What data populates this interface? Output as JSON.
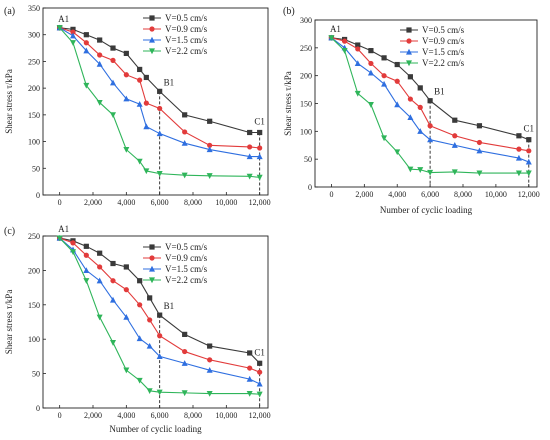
{
  "figure": {
    "colors": {
      "series": [
        "#3a3a3a",
        "#e23b3b",
        "#2f6fe0",
        "#2fb55a"
      ]
    },
    "markers": [
      "square",
      "circle",
      "triangle-up",
      "triangle-down"
    ]
  },
  "chart_data": [
    {
      "panel_label": "(a)",
      "type": "line",
      "xlabel": "",
      "ylabel": "Shear stress τ/kPa",
      "xlim": [
        -1000,
        12500
      ],
      "ylim": [
        0,
        350
      ],
      "xticks": [
        0,
        2000,
        4000,
        6000,
        8000,
        10000,
        12000
      ],
      "xtick_labels": [
        "0",
        "2,000",
        "4,000",
        "6,000",
        "8,000",
        "10,000",
        "12,000"
      ],
      "yticks": [
        0,
        50,
        100,
        150,
        200,
        250,
        300,
        350
      ],
      "ytick_labels": [
        "0",
        "50",
        "100",
        "150",
        "200",
        "250",
        "300",
        "350"
      ],
      "legend_position": "top-center",
      "vlines": [
        6000,
        12000
      ],
      "annotations": [
        {
          "text": "A1",
          "x": 0,
          "y": 313
        },
        {
          "text": "B1",
          "x": 6000,
          "y": 194
        },
        {
          "text": "C1",
          "x": 12000,
          "y": 117
        }
      ],
      "series": [
        {
          "name": "V=0.5 cm/s",
          "x": [
            0,
            800,
            1600,
            2400,
            3200,
            4000,
            4800,
            5200,
            6000,
            7500,
            9000,
            11400,
            12000
          ],
          "y": [
            313,
            310,
            300,
            290,
            275,
            265,
            235,
            220,
            194,
            150,
            138,
            117,
            117
          ]
        },
        {
          "name": "V=0.9 cm/s",
          "x": [
            0,
            800,
            1600,
            2400,
            3200,
            4000,
            4800,
            5200,
            6000,
            7500,
            9000,
            11400,
            12000
          ],
          "y": [
            313,
            305,
            285,
            262,
            252,
            225,
            215,
            172,
            162,
            118,
            93,
            90,
            88
          ]
        },
        {
          "name": "V=1.5 cm/s",
          "x": [
            0,
            800,
            1600,
            2400,
            3200,
            4000,
            4800,
            5200,
            6000,
            7500,
            9000,
            11400,
            12000
          ],
          "y": [
            313,
            298,
            270,
            245,
            210,
            180,
            170,
            128,
            115,
            97,
            85,
            72,
            72
          ]
        },
        {
          "name": "V=2.2 cm/s",
          "x": [
            0,
            800,
            1600,
            2400,
            3200,
            4000,
            4800,
            5200,
            6000,
            7500,
            9000,
            11400,
            12000
          ],
          "y": [
            313,
            285,
            205,
            173,
            150,
            85,
            63,
            45,
            40,
            37,
            36,
            35,
            33
          ]
        }
      ]
    },
    {
      "panel_label": "(b)",
      "type": "line",
      "xlabel": "Number of cyclic loading",
      "ylabel": "Shear stress τ/kPa",
      "xlim": [
        -1000,
        12500
      ],
      "ylim": [
        0,
        300
      ],
      "xticks": [
        0,
        2000,
        4000,
        6000,
        8000,
        10000,
        12000
      ],
      "xtick_labels": [
        "0",
        "2,000",
        "4,000",
        "6,000",
        "8,000",
        "10,000",
        "12,000"
      ],
      "yticks": [
        0,
        50,
        100,
        150,
        200,
        250,
        300
      ],
      "ytick_labels": [
        "0",
        "50",
        "100",
        "150",
        "200",
        "250",
        "300"
      ],
      "legend_position": "top-center",
      "vlines": [
        6000,
        12000
      ],
      "annotations": [
        {
          "text": "A1",
          "x": 0,
          "y": 268
        },
        {
          "text": "B1",
          "x": 6000,
          "y": 155
        },
        {
          "text": "C1",
          "x": 12000,
          "y": 85
        }
      ],
      "series": [
        {
          "name": "V=0.5 cm/s",
          "x": [
            0,
            800,
            1600,
            2400,
            3200,
            4000,
            4800,
            5400,
            6000,
            7500,
            9000,
            11400,
            12000
          ],
          "y": [
            268,
            265,
            255,
            245,
            232,
            220,
            198,
            178,
            155,
            120,
            110,
            92,
            85
          ]
        },
        {
          "name": "V=0.9 cm/s",
          "x": [
            0,
            800,
            1600,
            2400,
            3200,
            4000,
            4800,
            5400,
            6000,
            7500,
            9000,
            11400,
            12000
          ],
          "y": [
            268,
            262,
            248,
            222,
            200,
            190,
            158,
            143,
            110,
            92,
            80,
            68,
            65
          ]
        },
        {
          "name": "V=1.5 cm/s",
          "x": [
            0,
            800,
            1600,
            2400,
            3200,
            4000,
            4800,
            5400,
            6000,
            7500,
            9000,
            11400,
            12000
          ],
          "y": [
            268,
            250,
            222,
            205,
            185,
            148,
            125,
            100,
            85,
            75,
            65,
            52,
            45
          ]
        },
        {
          "name": "V=2.2 cm/s",
          "x": [
            0,
            800,
            1600,
            2400,
            3200,
            4000,
            4800,
            5400,
            6000,
            7500,
            9000,
            11400,
            12000
          ],
          "y": [
            268,
            245,
            168,
            148,
            88,
            63,
            32,
            31,
            26,
            27,
            25,
            25,
            25
          ]
        }
      ]
    },
    {
      "panel_label": "(c)",
      "type": "line",
      "xlabel": "Number of cyclic loading",
      "ylabel": "Shear stress τ/kPa",
      "xlim": [
        -1000,
        12500
      ],
      "ylim": [
        0,
        250
      ],
      "xticks": [
        0,
        2000,
        4000,
        6000,
        8000,
        10000,
        12000
      ],
      "xtick_labels": [
        "0",
        "2,000",
        "4,000",
        "6,000",
        "8,000",
        "10,000",
        "12,000"
      ],
      "yticks": [
        0,
        50,
        100,
        150,
        200,
        250
      ],
      "ytick_labels": [
        "0",
        "50",
        "100",
        "150",
        "200",
        "250"
      ],
      "legend_position": "top-center",
      "vlines": [
        6000,
        12000
      ],
      "annotations": [
        {
          "text": "A1",
          "x": 0,
          "y": 247
        },
        {
          "text": "B1",
          "x": 6000,
          "y": 135
        },
        {
          "text": "C1",
          "x": 12000,
          "y": 65
        }
      ],
      "series": [
        {
          "name": "V=0.5 cm/s",
          "x": [
            0,
            800,
            1600,
            2400,
            3200,
            4000,
            4800,
            5400,
            6000,
            7500,
            9000,
            11400,
            12000
          ],
          "y": [
            247,
            243,
            235,
            225,
            210,
            205,
            185,
            160,
            135,
            107,
            90,
            80,
            65
          ]
        },
        {
          "name": "V=0.9 cm/s",
          "x": [
            0,
            800,
            1600,
            2400,
            3200,
            4000,
            4800,
            5400,
            6000,
            7500,
            9000,
            11400,
            12000
          ],
          "y": [
            247,
            240,
            222,
            205,
            185,
            172,
            150,
            128,
            105,
            82,
            70,
            58,
            52
          ]
        },
        {
          "name": "V=1.5 cm/s",
          "x": [
            0,
            800,
            1600,
            2400,
            3200,
            4000,
            4800,
            5400,
            6000,
            7500,
            9000,
            11400,
            12000
          ],
          "y": [
            247,
            230,
            200,
            185,
            157,
            132,
            101,
            90,
            75,
            65,
            55,
            42,
            35
          ]
        },
        {
          "name": "V=2.2 cm/s",
          "x": [
            0,
            800,
            1600,
            2400,
            3200,
            4000,
            4800,
            5400,
            6000,
            7500,
            9000,
            11400,
            12000
          ],
          "y": [
            247,
            227,
            185,
            132,
            95,
            55,
            40,
            25,
            23,
            22,
            21,
            21,
            20
          ]
        }
      ]
    }
  ]
}
